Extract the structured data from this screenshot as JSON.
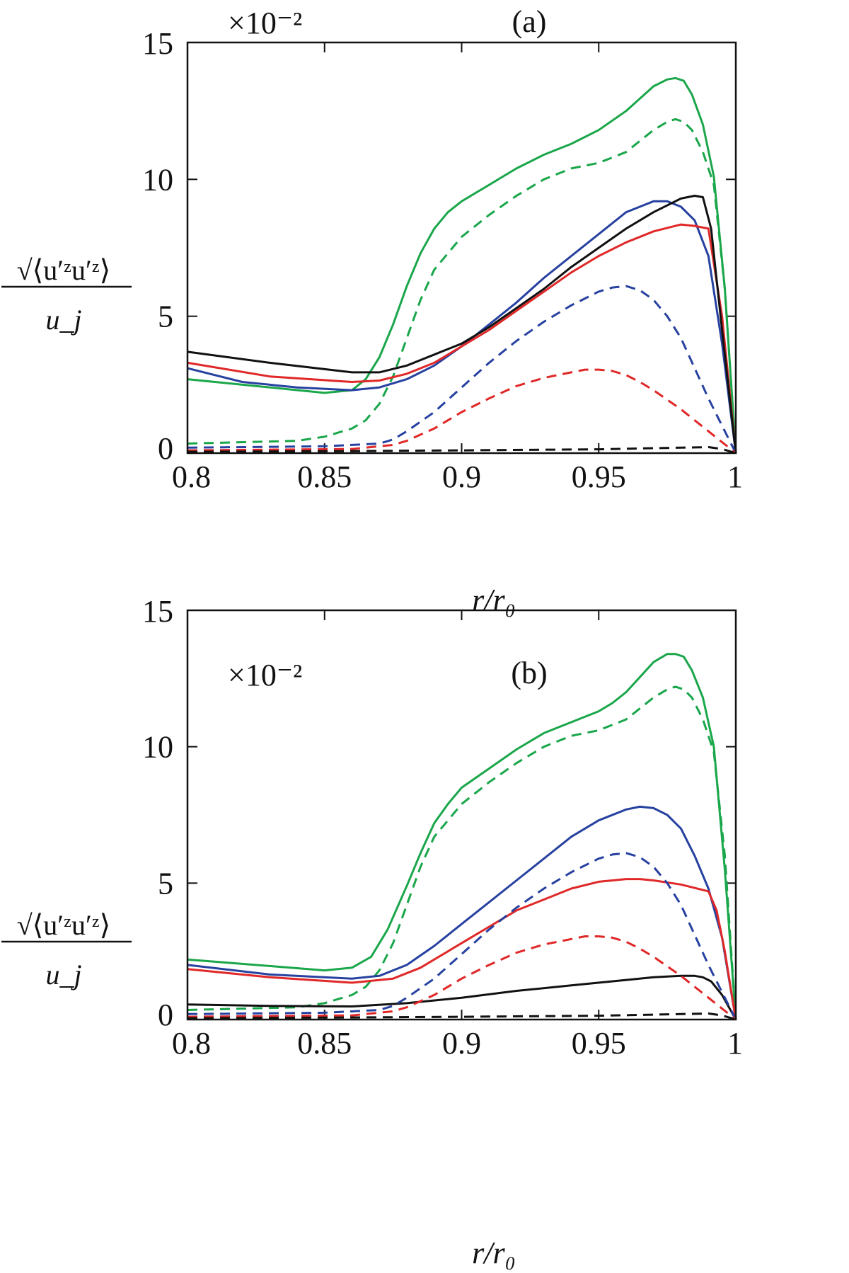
{
  "chart_data": [
    {
      "type": "line",
      "panel_label": "(a)",
      "scale_label": "×10⁻²",
      "xlabel": "r/r₀",
      "ylabel_num": "√⟨u′ᶻu′ᶻ⟩",
      "ylabel_den": "u_j",
      "xlim": [
        0.8,
        1.0
      ],
      "ylim": [
        0,
        15
      ],
      "x_ticks": [
        0.8,
        0.85,
        0.9,
        0.95,
        1.0
      ],
      "x_tick_labels": [
        "0.8",
        "0.85",
        "0.9",
        "0.95",
        "1"
      ],
      "y_ticks": [
        0,
        5,
        10,
        15
      ],
      "y_tick_labels": [
        "0",
        "5",
        "10",
        "15"
      ],
      "series": [
        {
          "name": "green-solid",
          "color": "#1aa64a",
          "dash": "solid",
          "x": [
            0.8,
            0.85,
            0.86,
            0.865,
            0.87,
            0.875,
            0.88,
            0.885,
            0.89,
            0.895,
            0.9,
            0.91,
            0.92,
            0.93,
            0.94,
            0.95,
            0.96,
            0.97,
            0.975,
            0.978,
            0.981,
            0.984,
            0.988,
            0.992,
            0.996,
            1.0
          ],
          "y": [
            2.7,
            2.2,
            2.3,
            2.7,
            3.5,
            4.7,
            6.1,
            7.3,
            8.2,
            8.8,
            9.2,
            9.8,
            10.4,
            10.9,
            11.3,
            11.8,
            12.5,
            13.4,
            13.65,
            13.7,
            13.6,
            13.1,
            12.0,
            10.1,
            6.0,
            0.0
          ]
        },
        {
          "name": "green-dashed",
          "color": "#1aa64a",
          "dash": "dashed",
          "x": [
            0.8,
            0.84,
            0.85,
            0.86,
            0.865,
            0.87,
            0.875,
            0.88,
            0.885,
            0.89,
            0.9,
            0.91,
            0.92,
            0.93,
            0.94,
            0.95,
            0.96,
            0.97,
            0.975,
            0.978,
            0.981,
            0.984,
            0.988,
            0.992,
            0.996,
            1.0
          ],
          "y": [
            0.35,
            0.45,
            0.6,
            0.9,
            1.2,
            1.8,
            2.8,
            4.2,
            5.6,
            6.7,
            7.9,
            8.7,
            9.4,
            10.0,
            10.4,
            10.6,
            11.0,
            11.8,
            12.1,
            12.2,
            12.1,
            11.8,
            11.0,
            9.8,
            6.0,
            0.0
          ]
        },
        {
          "name": "blue-solid",
          "color": "#2741a0",
          "dash": "solid",
          "x": [
            0.8,
            0.82,
            0.84,
            0.86,
            0.87,
            0.88,
            0.89,
            0.9,
            0.91,
            0.92,
            0.93,
            0.94,
            0.95,
            0.96,
            0.965,
            0.97,
            0.975,
            0.98,
            0.985,
            0.99,
            0.995,
            1.0
          ],
          "y": [
            3.1,
            2.6,
            2.4,
            2.3,
            2.4,
            2.7,
            3.2,
            3.9,
            4.7,
            5.5,
            6.4,
            7.2,
            8.0,
            8.8,
            9.0,
            9.2,
            9.2,
            9.0,
            8.5,
            7.2,
            4.0,
            0.0
          ]
        },
        {
          "name": "red-solid",
          "color": "#e02828",
          "dash": "solid",
          "x": [
            0.8,
            0.83,
            0.86,
            0.87,
            0.88,
            0.89,
            0.9,
            0.91,
            0.92,
            0.93,
            0.94,
            0.95,
            0.96,
            0.97,
            0.98,
            0.985,
            0.99,
            0.995,
            1.0
          ],
          "y": [
            3.3,
            2.8,
            2.6,
            2.65,
            2.9,
            3.3,
            3.9,
            4.5,
            5.2,
            5.9,
            6.6,
            7.2,
            7.7,
            8.1,
            8.35,
            8.3,
            8.2,
            5.0,
            0.0
          ]
        },
        {
          "name": "black-solid",
          "color": "#111111",
          "dash": "solid",
          "x": [
            0.8,
            0.83,
            0.86,
            0.87,
            0.88,
            0.89,
            0.9,
            0.91,
            0.92,
            0.93,
            0.94,
            0.95,
            0.96,
            0.97,
            0.98,
            0.985,
            0.988,
            0.991,
            0.995,
            1.0
          ],
          "y": [
            3.7,
            3.3,
            2.95,
            2.95,
            3.2,
            3.6,
            4.0,
            4.6,
            5.3,
            6.0,
            6.8,
            7.5,
            8.2,
            8.8,
            9.3,
            9.4,
            9.35,
            8.2,
            4.5,
            0.0
          ]
        },
        {
          "name": "blue-dashed",
          "color": "#2741a0",
          "dash": "dashed",
          "x": [
            0.8,
            0.85,
            0.87,
            0.875,
            0.88,
            0.89,
            0.9,
            0.91,
            0.92,
            0.93,
            0.94,
            0.95,
            0.955,
            0.96,
            0.965,
            0.97,
            0.975,
            0.98,
            0.985,
            0.99,
            0.995,
            1.0
          ],
          "y": [
            0.2,
            0.25,
            0.35,
            0.5,
            0.8,
            1.5,
            2.4,
            3.3,
            4.1,
            4.8,
            5.4,
            5.9,
            6.05,
            6.1,
            5.95,
            5.6,
            5.0,
            4.2,
            3.1,
            2.0,
            1.0,
            0.0
          ]
        },
        {
          "name": "red-dashed",
          "color": "#e02828",
          "dash": "dashed",
          "x": [
            0.8,
            0.86,
            0.875,
            0.88,
            0.89,
            0.9,
            0.91,
            0.92,
            0.93,
            0.94,
            0.945,
            0.95,
            0.955,
            0.96,
            0.965,
            0.97,
            0.98,
            0.99,
            1.0
          ],
          "y": [
            0.1,
            0.15,
            0.3,
            0.45,
            0.9,
            1.5,
            2.0,
            2.45,
            2.75,
            2.95,
            3.05,
            3.05,
            3.0,
            2.85,
            2.6,
            2.3,
            1.6,
            0.8,
            0.0
          ]
        },
        {
          "name": "black-dashed",
          "color": "#111111",
          "dash": "dashed",
          "x": [
            0.8,
            0.85,
            0.9,
            0.95,
            0.97,
            0.98,
            0.99,
            0.995,
            1.0
          ],
          "y": [
            0.05,
            0.07,
            0.1,
            0.14,
            0.18,
            0.2,
            0.22,
            0.15,
            0.0
          ]
        }
      ]
    },
    {
      "type": "line",
      "panel_label": "(b)",
      "scale_label": "×10⁻²",
      "xlabel": "r/r₀",
      "ylabel_num": "√⟨u′ᶻu′ᶻ⟩",
      "ylabel_den": "u_j",
      "xlim": [
        0.8,
        1.0
      ],
      "ylim": [
        0,
        15
      ],
      "x_ticks": [
        0.8,
        0.85,
        0.9,
        0.95,
        1.0
      ],
      "x_tick_labels": [
        "0.8",
        "0.85",
        "0.9",
        "0.95",
        "1"
      ],
      "y_ticks": [
        0,
        5,
        10,
        15
      ],
      "y_tick_labels": [
        "0",
        "5",
        "10",
        "15"
      ],
      "series": [
        {
          "name": "green-solid",
          "color": "#1aa64a",
          "dash": "solid",
          "x": [
            0.8,
            0.85,
            0.86,
            0.867,
            0.873,
            0.88,
            0.885,
            0.89,
            0.895,
            0.9,
            0.91,
            0.92,
            0.93,
            0.94,
            0.95,
            0.955,
            0.96,
            0.97,
            0.975,
            0.978,
            0.981,
            0.984,
            0.988,
            0.992,
            0.996,
            1.0
          ],
          "y": [
            2.2,
            1.8,
            1.9,
            2.3,
            3.3,
            4.9,
            6.1,
            7.2,
            7.9,
            8.5,
            9.2,
            9.9,
            10.5,
            10.9,
            11.3,
            11.6,
            12.0,
            13.1,
            13.4,
            13.4,
            13.3,
            12.8,
            11.8,
            10.0,
            5.5,
            0.0
          ]
        },
        {
          "name": "green-dashed",
          "color": "#1aa64a",
          "dash": "dashed",
          "x": [
            0.8,
            0.84,
            0.85,
            0.86,
            0.865,
            0.87,
            0.875,
            0.88,
            0.885,
            0.89,
            0.9,
            0.91,
            0.92,
            0.93,
            0.94,
            0.95,
            0.96,
            0.97,
            0.975,
            0.978,
            0.981,
            0.984,
            0.988,
            0.992,
            0.996,
            1.0
          ],
          "y": [
            0.35,
            0.45,
            0.6,
            0.9,
            1.2,
            1.8,
            2.8,
            4.2,
            5.6,
            6.7,
            7.9,
            8.7,
            9.4,
            10.0,
            10.4,
            10.6,
            11.0,
            11.8,
            12.1,
            12.2,
            12.1,
            11.8,
            11.0,
            9.8,
            6.0,
            0.0
          ]
        },
        {
          "name": "blue-solid",
          "color": "#2741a0",
          "dash": "solid",
          "x": [
            0.8,
            0.83,
            0.86,
            0.87,
            0.88,
            0.89,
            0.9,
            0.91,
            0.92,
            0.93,
            0.94,
            0.95,
            0.96,
            0.965,
            0.97,
            0.975,
            0.98,
            0.985,
            0.99,
            0.995,
            1.0
          ],
          "y": [
            2.0,
            1.65,
            1.5,
            1.6,
            2.0,
            2.7,
            3.5,
            4.3,
            5.1,
            5.9,
            6.7,
            7.3,
            7.7,
            7.8,
            7.75,
            7.5,
            7.0,
            6.0,
            4.8,
            3.0,
            0.0
          ]
        },
        {
          "name": "red-solid",
          "color": "#e02828",
          "dash": "solid",
          "x": [
            0.8,
            0.83,
            0.86,
            0.875,
            0.885,
            0.89,
            0.9,
            0.91,
            0.92,
            0.93,
            0.94,
            0.95,
            0.96,
            0.965,
            0.97,
            0.98,
            0.99,
            0.993,
            0.996,
            1.0
          ],
          "y": [
            1.85,
            1.55,
            1.35,
            1.5,
            1.9,
            2.2,
            2.8,
            3.4,
            4.0,
            4.4,
            4.8,
            5.05,
            5.15,
            5.15,
            5.1,
            4.95,
            4.7,
            4.0,
            2.5,
            0.0
          ]
        },
        {
          "name": "black-solid",
          "color": "#111111",
          "dash": "solid",
          "x": [
            0.8,
            0.83,
            0.86,
            0.88,
            0.9,
            0.92,
            0.94,
            0.96,
            0.97,
            0.98,
            0.985,
            0.988,
            0.991,
            0.995,
            1.0
          ],
          "y": [
            0.55,
            0.5,
            0.48,
            0.6,
            0.8,
            1.05,
            1.25,
            1.45,
            1.55,
            1.6,
            1.6,
            1.55,
            1.4,
            0.9,
            0.0
          ]
        },
        {
          "name": "blue-dashed",
          "color": "#2741a0",
          "dash": "dashed",
          "x": [
            0.8,
            0.85,
            0.87,
            0.875,
            0.88,
            0.89,
            0.9,
            0.91,
            0.92,
            0.93,
            0.94,
            0.95,
            0.955,
            0.96,
            0.965,
            0.97,
            0.975,
            0.98,
            0.985,
            0.99,
            0.995,
            1.0
          ],
          "y": [
            0.2,
            0.25,
            0.35,
            0.5,
            0.8,
            1.5,
            2.4,
            3.3,
            4.1,
            4.8,
            5.4,
            5.9,
            6.05,
            6.1,
            5.95,
            5.6,
            5.0,
            4.2,
            3.1,
            2.0,
            1.0,
            0.0
          ]
        },
        {
          "name": "red-dashed",
          "color": "#e02828",
          "dash": "dashed",
          "x": [
            0.8,
            0.86,
            0.875,
            0.88,
            0.89,
            0.9,
            0.91,
            0.92,
            0.93,
            0.94,
            0.945,
            0.95,
            0.955,
            0.96,
            0.965,
            0.97,
            0.98,
            0.99,
            1.0
          ],
          "y": [
            0.1,
            0.15,
            0.3,
            0.45,
            0.9,
            1.5,
            2.0,
            2.45,
            2.75,
            2.95,
            3.05,
            3.05,
            3.0,
            2.85,
            2.6,
            2.3,
            1.6,
            0.8,
            0.0
          ]
        },
        {
          "name": "black-dashed",
          "color": "#111111",
          "dash": "dashed",
          "x": [
            0.8,
            0.85,
            0.9,
            0.95,
            0.97,
            0.98,
            0.99,
            0.995,
            1.0
          ],
          "y": [
            0.05,
            0.07,
            0.1,
            0.14,
            0.18,
            0.2,
            0.22,
            0.15,
            0.0
          ]
        }
      ]
    }
  ]
}
